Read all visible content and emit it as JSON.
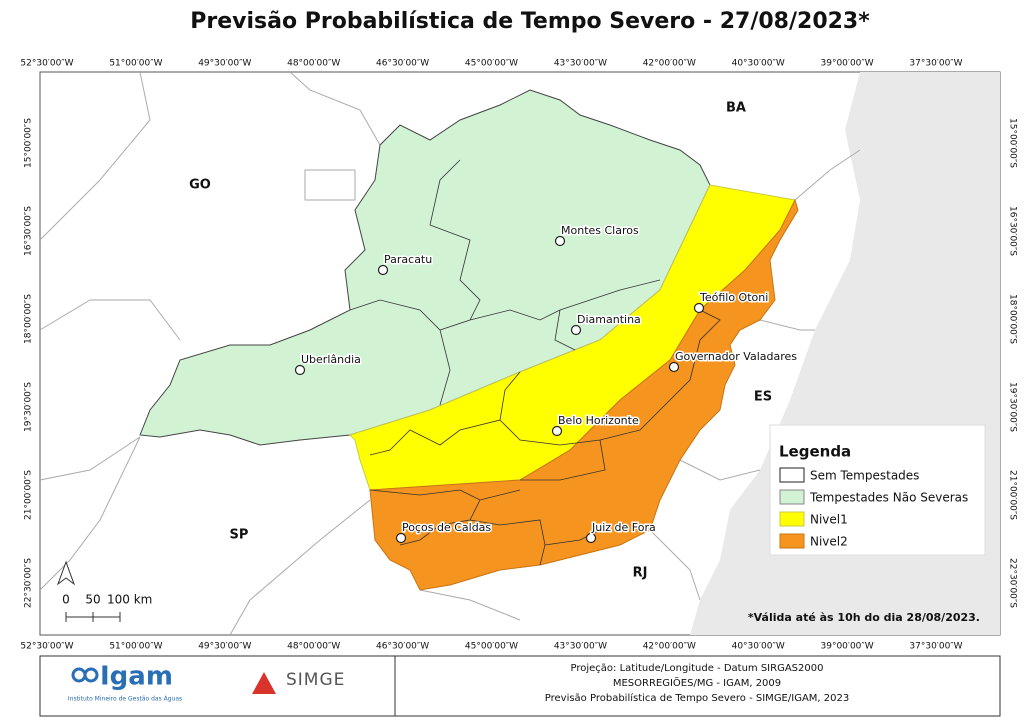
{
  "title": "Previsão Probabilística de Tempo Severo - 27/08/2023*",
  "map": {
    "longitude_labels": [
      "52°30′00″W",
      "51°00′00″W",
      "49°30′00″W",
      "48°00′00″W",
      "46°30′00″W",
      "45°00′00″W",
      "43°30′00″W",
      "42°00′00″W",
      "40°30′00″W",
      "39°00′00″W",
      "37°30′00″W"
    ],
    "latitude_labels": [
      "15°00′00″S",
      "16°30′00″S",
      "18°00′00″S",
      "19°30′00″S",
      "21°00′00″S",
      "22°30′00″S"
    ],
    "states": [
      "BA",
      "GO",
      "ES",
      "SP",
      "RJ"
    ],
    "cities": [
      "Montes Claros",
      "Paracatu",
      "Teófilo Otoni",
      "Diamantina",
      "Governador Valadares",
      "Uberlândia",
      "Belo Horizonte",
      "Poços de Caldas",
      "Juiz de Fora"
    ],
    "scale_labels": [
      "0",
      "50",
      "100 km"
    ],
    "note": "*Válida até às 10h do dia 28/08/2023."
  },
  "legend": {
    "title": "Legenda",
    "items": [
      "Sem Tempestades",
      "Tempestades Não Severas",
      "Nivel1",
      "Nivel2"
    ]
  },
  "footer": {
    "igam": "Igam",
    "igam_subtitle": "Instituto Mineiro de Gestão das Águas",
    "simge": "SIMGE",
    "credits": [
      "Projeção: Latitude/Longitude - Datum SIRGAS2000",
      "MESORREGIÕES/MG - IGAM, 2009",
      "Previsão Probabilística de Tempo Severo - SIMGE/IGAM, 2023"
    ]
  }
}
